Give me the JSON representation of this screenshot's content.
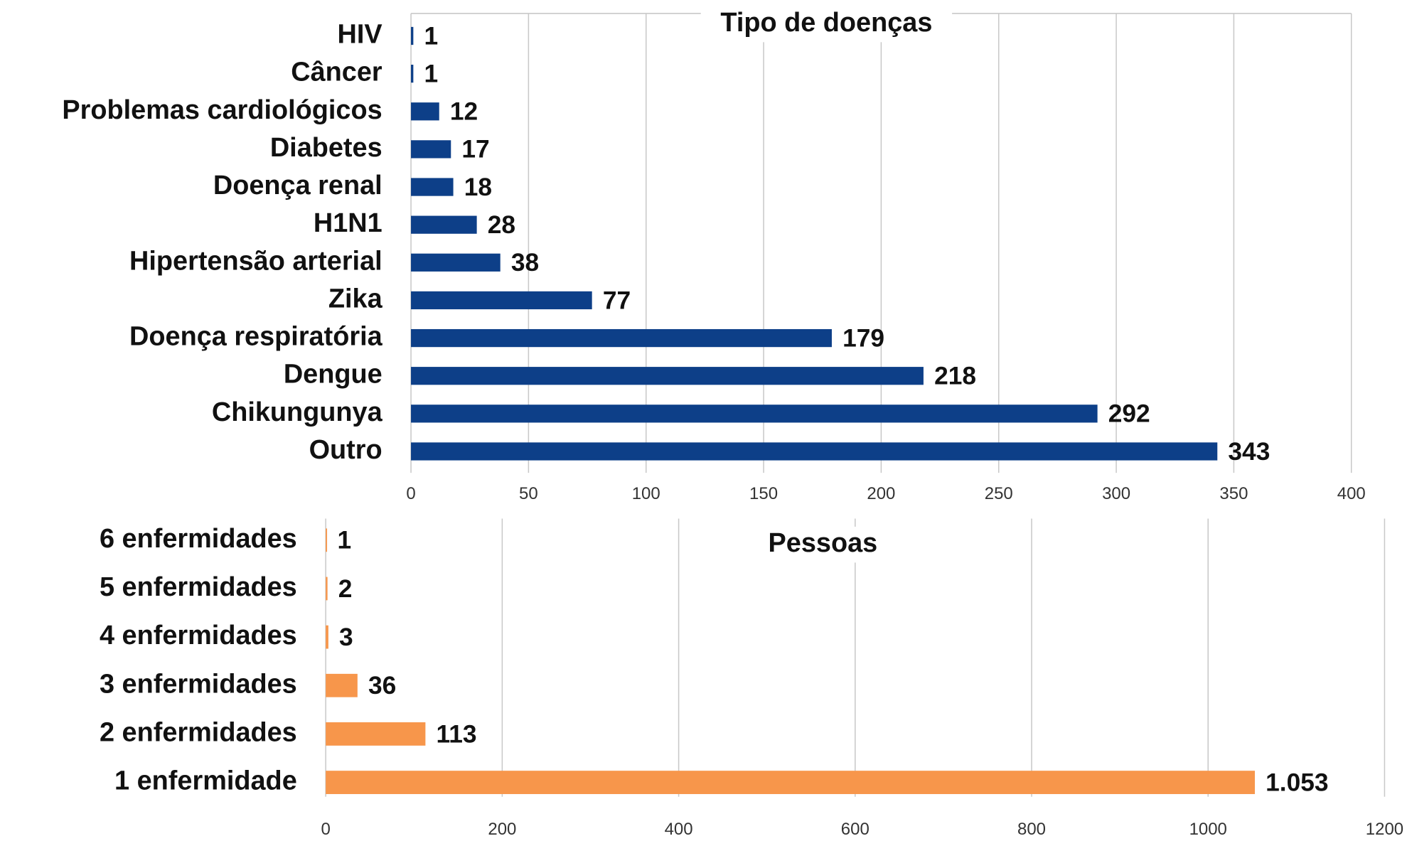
{
  "chart_data": [
    {
      "type": "barh",
      "title": "Tipo de doenças",
      "categories": [
        "HIV",
        "Câncer",
        "Problemas cardiológicos",
        "Diabetes",
        "Doença renal",
        "H1N1",
        "Hipertensão arterial",
        "Zika",
        "Doença respiratória",
        "Dengue",
        "Chikungunya",
        "Outro"
      ],
      "values": [
        1,
        1,
        12,
        17,
        18,
        28,
        38,
        77,
        179,
        218,
        292,
        343
      ],
      "color": "#0d3f88",
      "xlim": [
        0,
        400
      ],
      "xticks": [
        0,
        50,
        100,
        150,
        200,
        250,
        300,
        350,
        400
      ],
      "grid": true
    },
    {
      "type": "barh",
      "title": "Pessoas",
      "categories": [
        "6 enfermidades",
        "5 enfermidades",
        "4 enfermidades",
        "3 enfermidades",
        "2 enfermidades",
        "1 enfermidade"
      ],
      "values": [
        1,
        2,
        3,
        36,
        113,
        1053
      ],
      "value_labels": [
        "1",
        "2",
        "3",
        "36",
        "113",
        "1.053"
      ],
      "color": "#f7964b",
      "xlim": [
        0,
        1200
      ],
      "xticks": [
        0,
        200,
        400,
        600,
        800,
        1000,
        1200
      ],
      "grid": true
    }
  ]
}
